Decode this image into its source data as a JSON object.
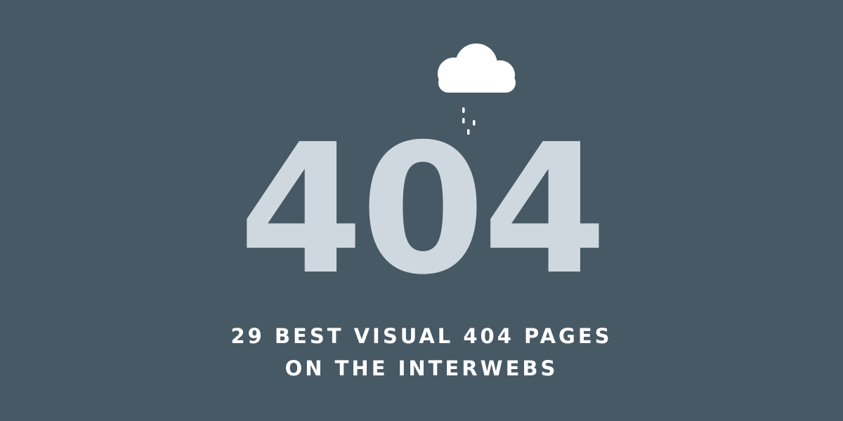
{
  "hero": {
    "code": "404",
    "icon": "cloud-rain-icon"
  },
  "headline": {
    "line1": "29 BEST VISUAL 404 PAGES",
    "line2": "ON THE INTERWEBS"
  },
  "colors": {
    "background": "#475965",
    "code": "#d0d8df",
    "headline": "#ffffff",
    "cloud": "#ffffff"
  }
}
